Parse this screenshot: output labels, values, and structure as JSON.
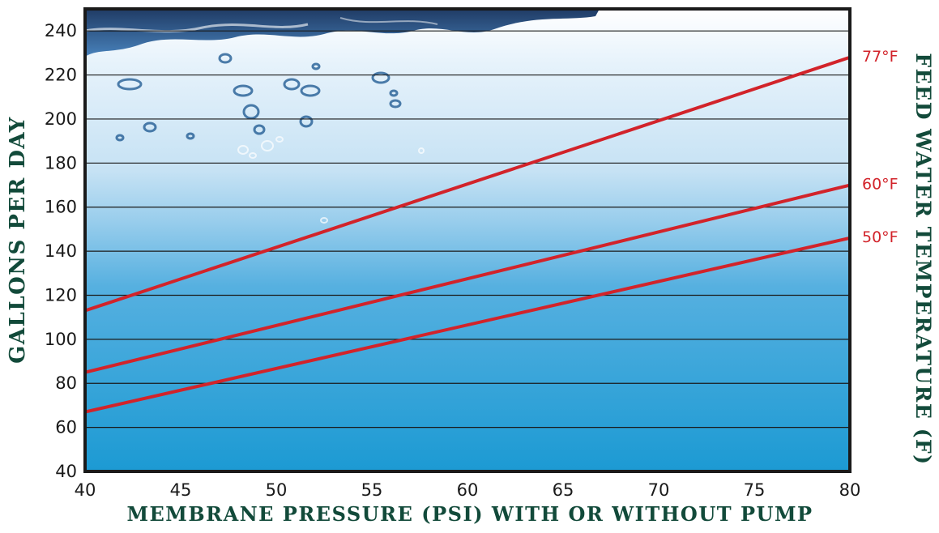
{
  "chart_data": {
    "type": "line",
    "title": "",
    "xlabel": "MEMBRANE PRESSURE (PSI) WITH OR WITHOUT PUMP",
    "ylabel": "GALLONS PER DAY",
    "y2label": "FEED WATER TEMPERATURE (F)",
    "xlim": [
      40,
      80
    ],
    "ylim": [
      40,
      250
    ],
    "x_ticks": [
      "40",
      "45",
      "50",
      "55",
      "60",
      "65",
      "70",
      "75",
      "80"
    ],
    "y_ticks": [
      "40",
      "60",
      "80",
      "100",
      "120",
      "140",
      "160",
      "180",
      "200",
      "220",
      "240"
    ],
    "grid": true,
    "legend": "right-edge labels",
    "line_color": "#d2232a",
    "series": [
      {
        "name": "77°F",
        "x": [
          40,
          80
        ],
        "y": [
          113,
          228
        ]
      },
      {
        "name": "60°F",
        "x": [
          40,
          80
        ],
        "y": [
          85,
          170
        ]
      },
      {
        "name": "50°F",
        "x": [
          40,
          80
        ],
        "y": [
          67,
          146
        ]
      }
    ]
  }
}
